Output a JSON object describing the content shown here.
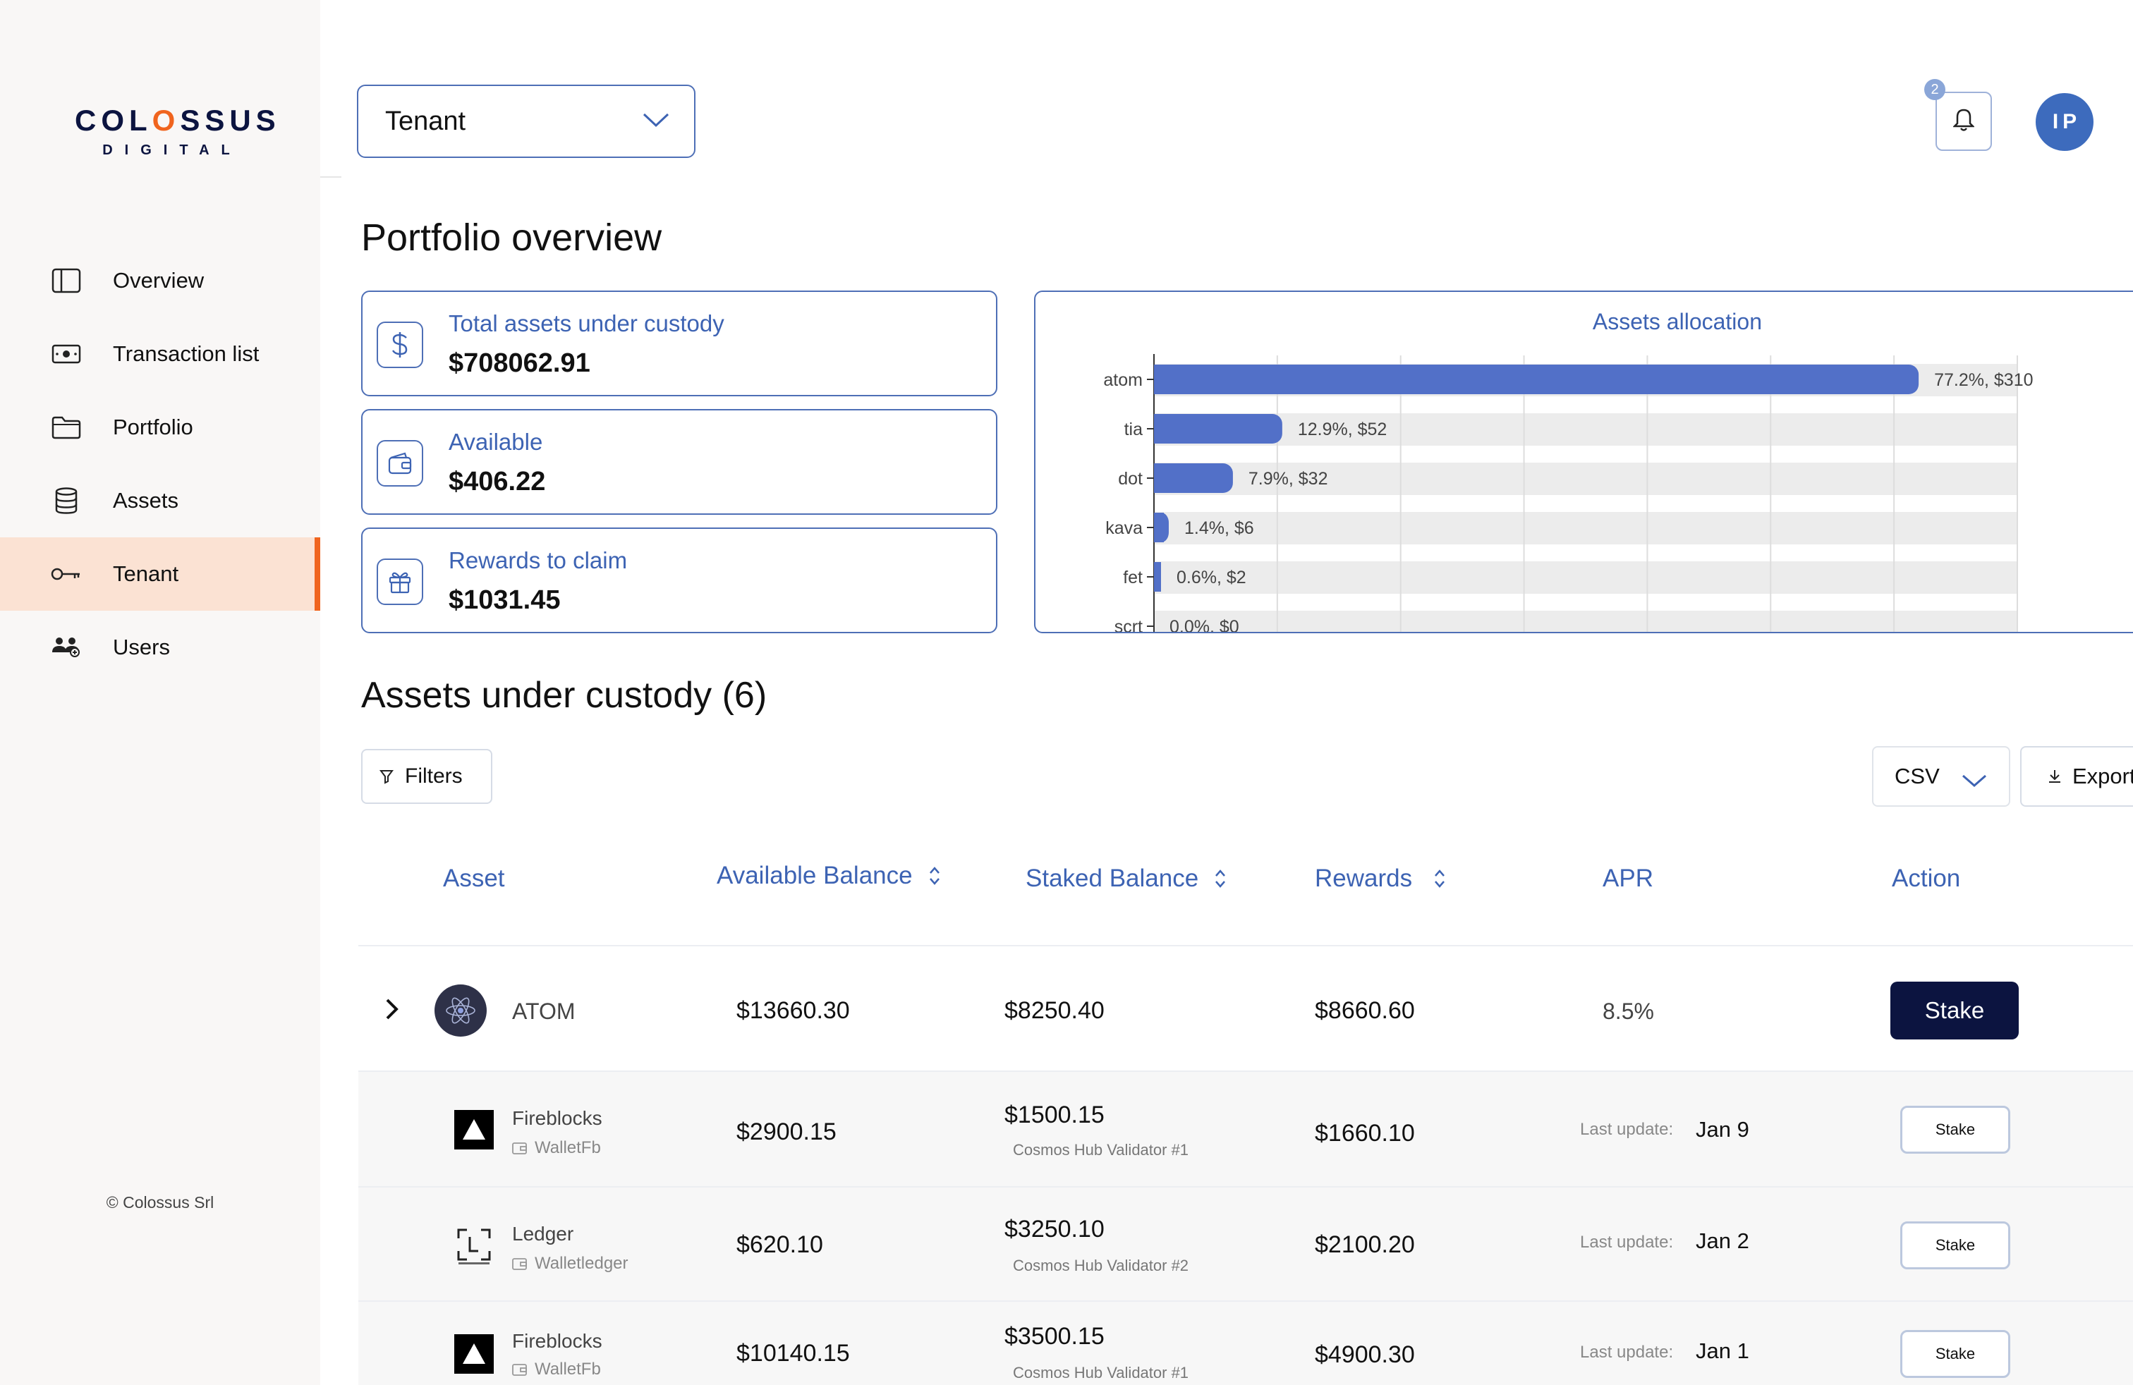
{
  "brand": {
    "name_part1": "COL",
    "name_part2": "O",
    "name_part3": "SSUS",
    "sub": "DIGITAL"
  },
  "sidebar": {
    "items": [
      {
        "label": "Overview",
        "icon": "sidebar-panel-icon",
        "active": false
      },
      {
        "label": "Transaction list",
        "icon": "cash-icon",
        "active": false
      },
      {
        "label": "Portfolio",
        "icon": "folder-icon",
        "active": false
      },
      {
        "label": "Assets",
        "icon": "database-icon",
        "active": false
      },
      {
        "label": "Tenant",
        "icon": "key-icon",
        "active": true
      },
      {
        "label": "Users",
        "icon": "users-icon",
        "active": false
      }
    ],
    "copyright": "© Colossus Srl"
  },
  "header": {
    "tenant_select": {
      "value": "Tenant"
    },
    "notifications_count": "2",
    "avatar_initials": "IP"
  },
  "overview": {
    "title": "Portfolio overview",
    "cards": [
      {
        "title": "Total assets under custody",
        "value": "$708062.91",
        "icon": "dollar-icon"
      },
      {
        "title": "Available",
        "value": "$406.22",
        "icon": "wallet-icon"
      },
      {
        "title": "Rewards to claim",
        "value": "$1031.45",
        "icon": "gift-icon"
      }
    ]
  },
  "chart_data": {
    "type": "bar",
    "orientation": "horizontal",
    "title": "Assets allocation",
    "categories": [
      "atom",
      "tia",
      "dot",
      "kava",
      "fet",
      "scrt"
    ],
    "values": [
      310,
      52,
      32,
      6,
      2,
      0
    ],
    "labels": [
      "77.2%, $310",
      "12.9%, $52",
      "7.9%, $32",
      "1.4%, $6",
      "0.6%, $2",
      "0.0%, $0"
    ],
    "xlim": [
      0,
      350
    ],
    "grid": true,
    "bar_color": "#5270c8",
    "track_color": "#ececec"
  },
  "custody": {
    "title": "Assets under custody (6)",
    "filters_label": "Filters",
    "format_select": "CSV",
    "export_label": "Export",
    "columns": [
      "Asset",
      "Available Balance",
      "Staked Balance",
      "Rewards",
      "APR",
      "Action"
    ],
    "main_row": {
      "asset": "ATOM",
      "available": "$13660.30",
      "staked": "$8250.40",
      "rewards": "$8660.60",
      "apr": "8.5%",
      "action": "Stake"
    },
    "sub_rows": [
      {
        "custodian": "Fireblocks",
        "wallet": "WalletFb",
        "logo": "fireblocks-logo-icon",
        "available": "$2900.15",
        "staked": "$1500.15",
        "validator": "Cosmos Hub Validator #1",
        "rewards": "$1660.10",
        "last_update_label": "Last update:",
        "last_update": "Jan 9",
        "action": "Stake"
      },
      {
        "custodian": "Ledger",
        "wallet": "Walletledger",
        "logo": "ledger-logo-icon",
        "available": "$620.10",
        "staked": "$3250.10",
        "validator": "Cosmos Hub Validator #2",
        "rewards": "$2100.20",
        "last_update_label": "Last update:",
        "last_update": "Jan 2",
        "action": "Stake"
      },
      {
        "custodian": "Fireblocks",
        "wallet": "WalletFb",
        "logo": "fireblocks-logo-icon",
        "available": "$10140.15",
        "staked": "$3500.15",
        "validator": "Cosmos Hub Validator #1",
        "rewards": "$4900.30",
        "last_update_label": "Last update:",
        "last_update": "Jan 1",
        "action": "Stake"
      }
    ]
  },
  "colors": {
    "accent": "#f0641e",
    "primary": "#3d63b3",
    "navy": "#0c1440"
  }
}
